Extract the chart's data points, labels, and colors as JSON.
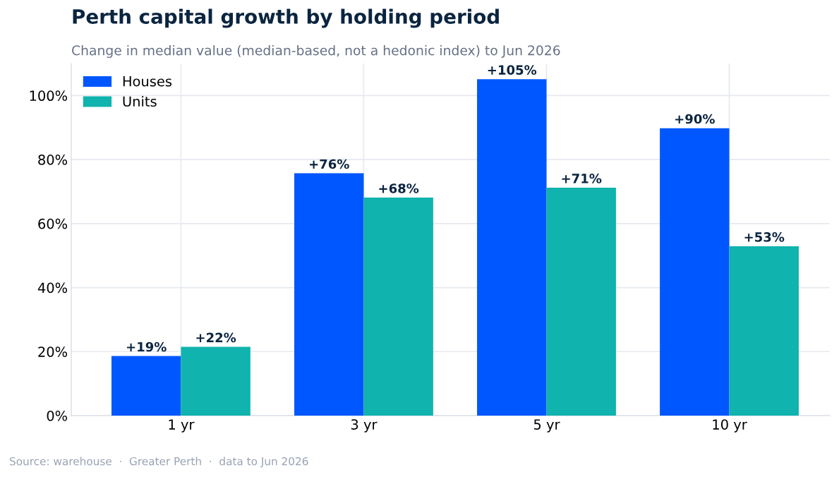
{
  "chart_data": {
    "type": "bar",
    "title": "Perth capital growth by holding period",
    "subtitle": "Change in median value (median-based, not a hedonic index) to Jun 2026",
    "categories": [
      "1 yr",
      "3 yr",
      "5 yr",
      "10 yr"
    ],
    "series": [
      {
        "name": "Houses",
        "color": "#0057ff",
        "values": [
          18.6,
          75.7,
          105.1,
          89.8
        ],
        "value_labels": [
          "+19%",
          "+76%",
          "+105%",
          "+90%"
        ]
      },
      {
        "name": "Units",
        "color": "#10b3ad",
        "values": [
          21.5,
          68.1,
          71.2,
          52.9
        ],
        "value_labels": [
          "+22%",
          "+68%",
          "+71%",
          "+53%"
        ]
      }
    ],
    "ylim": [
      0,
      110
    ],
    "yticks": [
      {
        "value": 0,
        "label": "0%"
      },
      {
        "value": 20,
        "label": "20%"
      },
      {
        "value": 40,
        "label": "40%"
      },
      {
        "value": 60,
        "label": "60%"
      },
      {
        "value": 80,
        "label": "80%"
      },
      {
        "value": 100,
        "label": "100%"
      }
    ],
    "grid": true,
    "legend": "top left",
    "annotations": [
      "Source: warehouse  ·  Greater Perth  ·  data to Jun 2026"
    ]
  }
}
